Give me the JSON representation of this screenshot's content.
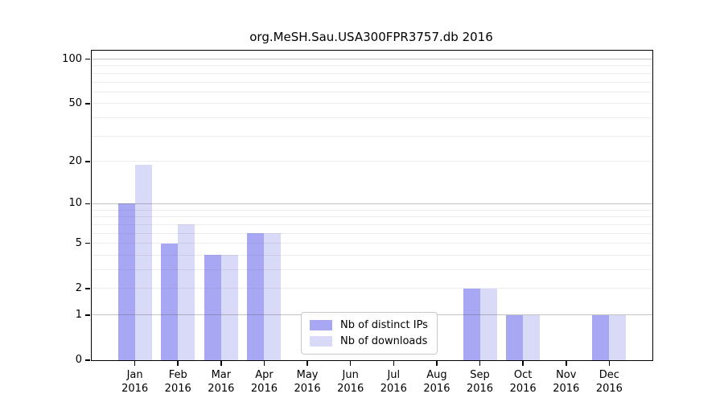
{
  "chart_data": {
    "type": "bar",
    "title": "org.MeSH.Sau.USA300FPR3757.db 2016",
    "categories": [
      "Jan",
      "Feb",
      "Mar",
      "Apr",
      "May",
      "Jun",
      "Jul",
      "Aug",
      "Sep",
      "Oct",
      "Nov",
      "Dec"
    ],
    "x_tick_year": "2016",
    "series": [
      {
        "name": "Nb of distinct IPs",
        "color": "#a7a7f3",
        "values": [
          10,
          5,
          4,
          6,
          0,
          0,
          0,
          0,
          2,
          1,
          0,
          1
        ]
      },
      {
        "name": "Nb of downloads",
        "color": "#d9d9f8",
        "values": [
          19,
          7,
          4,
          6,
          0,
          0,
          0,
          0,
          2,
          1,
          0,
          1
        ]
      }
    ],
    "yscale": "log10(value+1)",
    "yticks": [
      0,
      1,
      2,
      5,
      10,
      20,
      50,
      100
    ],
    "major_gridlines": [
      1,
      10,
      100
    ],
    "minor_gridlines": [
      2,
      3,
      4,
      5,
      6,
      7,
      8,
      9,
      20,
      30,
      40,
      50,
      60,
      70,
      80,
      90
    ],
    "ylim": [
      0,
      114
    ],
    "xlabel": "",
    "ylabel": "",
    "legend_position": "lower center",
    "grid": true
  },
  "legend": {
    "items": [
      {
        "label": "Nb of distinct IPs",
        "color": "#a7a7f3"
      },
      {
        "label": "Nb of downloads",
        "color": "#d9d9f8"
      }
    ]
  },
  "colors": {
    "bar_dark": "#a7a7f3",
    "bar_light": "#d9d9f8",
    "axis": "#000000",
    "legend_border": "#c9c9c9",
    "background": "#ffffff"
  }
}
